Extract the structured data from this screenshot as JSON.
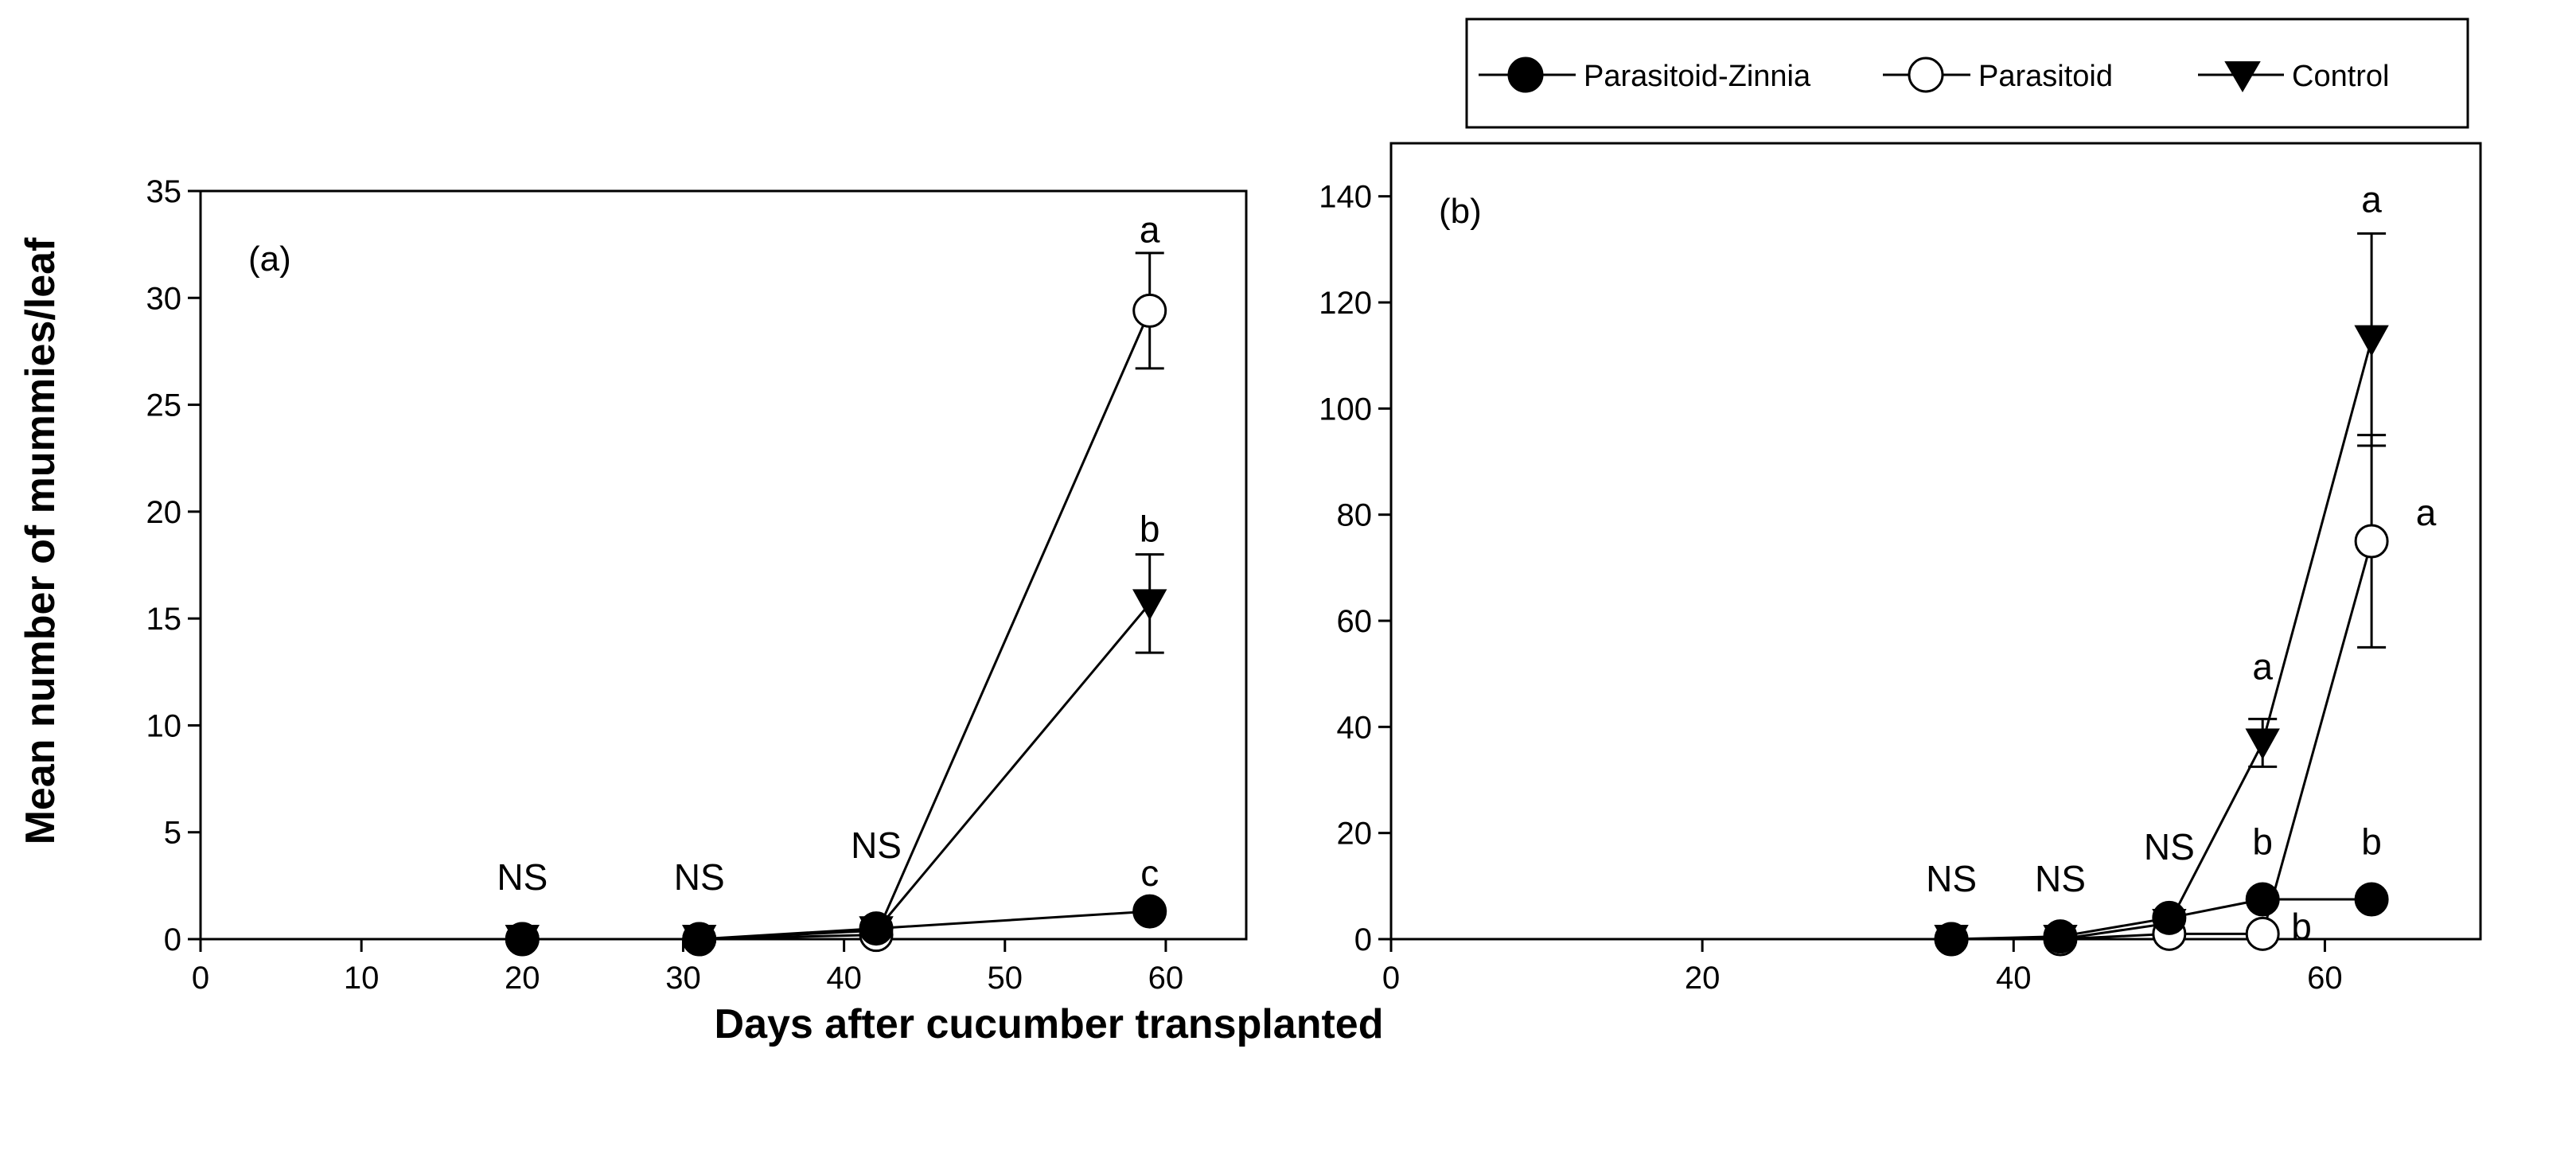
{
  "figure": {
    "ylabel": "Mean number of mummies/leaf",
    "xlabel": "Days after cucumber transplanted"
  },
  "legend": {
    "items": [
      {
        "name": "Parasitoid-Zinnia",
        "marker": "filled-circle",
        "color": "#000000"
      },
      {
        "name": "Parasitoid",
        "marker": "open-circle",
        "color": "#000000"
      },
      {
        "name": "Control",
        "marker": "filled-triangle-down",
        "color": "#000000"
      }
    ],
    "placement": "top-right"
  },
  "chart_data": [
    {
      "type": "line",
      "panel_label": "(a)",
      "xlim": [
        0,
        65
      ],
      "ylim": [
        0,
        35
      ],
      "xticks": [
        0,
        10,
        20,
        30,
        40,
        50,
        60
      ],
      "yticks": [
        0,
        5,
        10,
        15,
        20,
        25,
        30,
        35
      ],
      "series": [
        {
          "name": "Parasitoid-Zinnia",
          "x": [
            20,
            31,
            42,
            59
          ],
          "y": [
            0,
            0,
            0.5,
            1.3
          ],
          "err": [
            0,
            0,
            0,
            0
          ]
        },
        {
          "name": "Parasitoid",
          "x": [
            20,
            31,
            42,
            59
          ],
          "y": [
            0,
            0,
            0.2,
            29.4
          ],
          "err": [
            0,
            0,
            0,
            2.7
          ]
        },
        {
          "name": "Control",
          "x": [
            20,
            31,
            42,
            59
          ],
          "y": [
            0,
            0,
            0.4,
            15.7
          ],
          "err": [
            0,
            0,
            0,
            2.3
          ]
        }
      ],
      "annotations": [
        {
          "text": "NS",
          "x": 20,
          "y": 2.3
        },
        {
          "text": "NS",
          "x": 31,
          "y": 2.3
        },
        {
          "text": "NS",
          "x": 42,
          "y": 3.8
        },
        {
          "text": "a",
          "x": 59,
          "y": 32.6
        },
        {
          "text": "b",
          "x": 59,
          "y": 18.6
        },
        {
          "text": "c",
          "x": 59,
          "y": 2.5
        }
      ]
    },
    {
      "type": "line",
      "panel_label": "(b)",
      "xlim": [
        0,
        70
      ],
      "ylim": [
        0,
        150
      ],
      "xticks": [
        0,
        20,
        40,
        60
      ],
      "yticks": [
        0,
        20,
        40,
        60,
        80,
        100,
        120,
        140
      ],
      "series": [
        {
          "name": "Parasitoid-Zinnia",
          "x": [
            36,
            43,
            50,
            56,
            63
          ],
          "y": [
            0,
            0.5,
            4,
            7.5,
            7.5
          ],
          "err": [
            0,
            0,
            0,
            0,
            0
          ]
        },
        {
          "name": "Parasitoid",
          "x": [
            36,
            43,
            50,
            56,
            63
          ],
          "y": [
            0,
            0,
            1,
            1,
            75
          ],
          "err": [
            0,
            0,
            0,
            0,
            20
          ]
        },
        {
          "name": "Control",
          "x": [
            36,
            43,
            50,
            56,
            63
          ],
          "y": [
            0,
            0,
            3,
            37,
            113
          ],
          "err": [
            0,
            0,
            0,
            4.5,
            20
          ]
        }
      ],
      "annotations": [
        {
          "text": "NS",
          "x": 36,
          "y": 9
        },
        {
          "text": "NS",
          "x": 43,
          "y": 9
        },
        {
          "text": "NS",
          "x": 50,
          "y": 15
        },
        {
          "text": "a",
          "x": 56,
          "y": 49
        },
        {
          "text": "b",
          "x": 56,
          "y": 16
        },
        {
          "text": "b",
          "x": 58.5,
          "y": 0
        },
        {
          "text": "a",
          "x": 63,
          "y": 137
        },
        {
          "text": "a",
          "x": 66.5,
          "y": 78
        },
        {
          "text": "b",
          "x": 63,
          "y": 16
        }
      ]
    }
  ]
}
